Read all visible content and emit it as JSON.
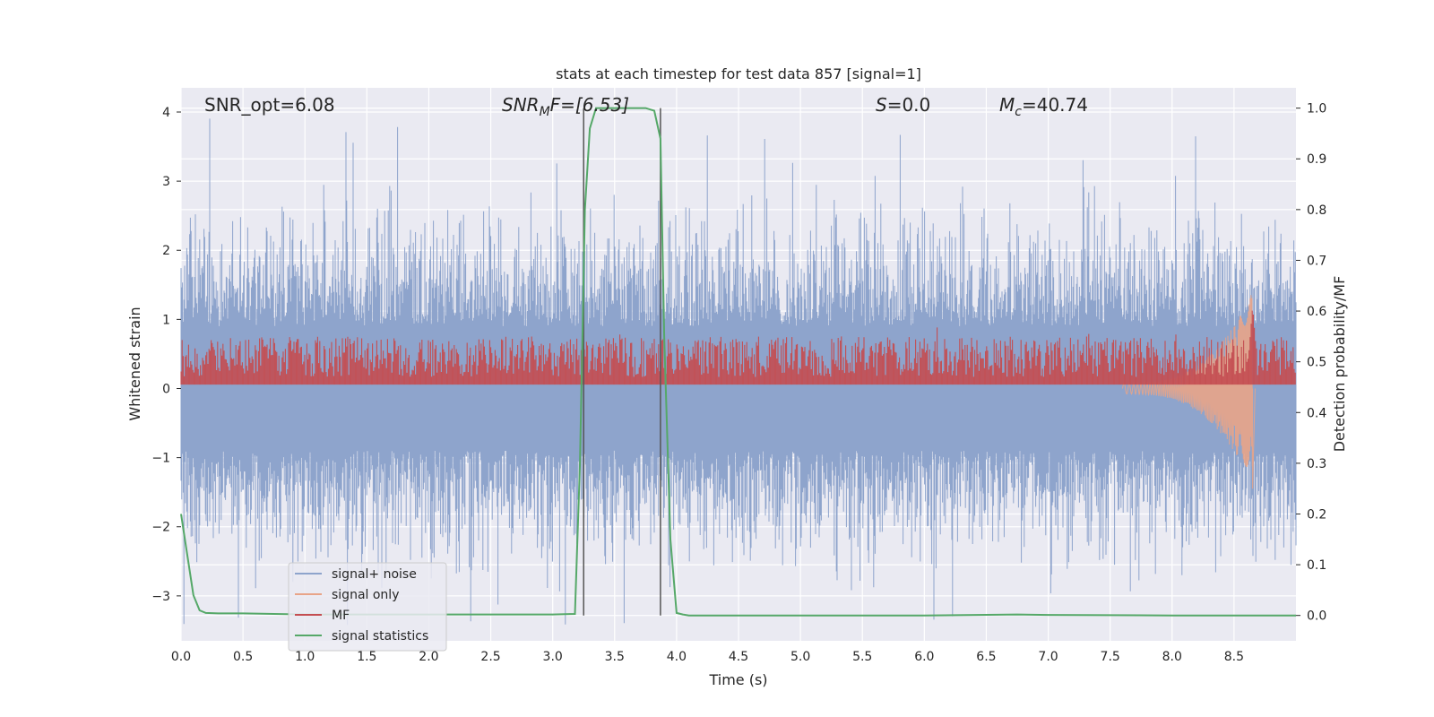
{
  "chart_data": {
    "type": "line",
    "title": "stats at each timestep for test data 857 [signal=1]",
    "xlabel": "Time (s)",
    "ylabel": "Whitened strain",
    "ylabel_right": "Detection probability/MF",
    "xlim": [
      0.0,
      9.0
    ],
    "ylim": [
      -3.65,
      4.35
    ],
    "ylim_right": [
      -0.05,
      1.04
    ],
    "x_ticks": [
      "0.0",
      "0.5",
      "1.0",
      "1.5",
      "2.0",
      "2.5",
      "3.0",
      "3.5",
      "4.0",
      "4.5",
      "5.0",
      "5.5",
      "6.0",
      "6.5",
      "7.0",
      "7.5",
      "8.0",
      "8.5"
    ],
    "y_ticks": [
      "−3",
      "−2",
      "−1",
      "0",
      "1",
      "2",
      "3",
      "4"
    ],
    "y_right_ticks": [
      "0.0",
      "0.1",
      "0.2",
      "0.3",
      "0.4",
      "0.5",
      "0.6",
      "0.7",
      "0.8",
      "0.9",
      "1.0"
    ],
    "grid": true,
    "legend_position": "lower-left",
    "annotations": {
      "snr_opt": "SNR_opt=6.08",
      "snr_mf_main": "SNR",
      "snr_mf_sub": "M",
      "snr_mf_rest": "F=[6.53]",
      "s_main": "S",
      "s_rest": "=0.0",
      "mc_main": "M",
      "mc_sub": "c",
      "mc_rest": "=40.74"
    },
    "vertical_lines_x": [
      3.25,
      3.87
    ],
    "series": [
      {
        "name": "signal+ noise",
        "color": "#8ea4cc",
        "description_axis": "left",
        "envelope": {
          "upper_typical": 1.9,
          "upper_peak": 4.0,
          "lower_typical": -1.9,
          "lower_peak": -3.6
        }
      },
      {
        "name": "signal only",
        "color": "#e8a488",
        "axis": "left",
        "chirp_end_x": 8.65,
        "chirp_peak": 1.4,
        "chirp_trough": -1.45
      },
      {
        "name": "MF",
        "color": "#c44e52",
        "axis": "right",
        "baseline": 0.5,
        "band": [
          0.47,
          0.55
        ],
        "peak_x": 8.65,
        "peak_value": 0.61
      },
      {
        "name": "signal statistics",
        "color": "#55a868",
        "axis": "right",
        "x": [
          0.0,
          0.05,
          0.1,
          0.15,
          0.2,
          0.3,
          0.5,
          1.0,
          2.0,
          3.0,
          3.18,
          3.22,
          3.26,
          3.3,
          3.35,
          3.5,
          3.75,
          3.82,
          3.87,
          3.9,
          3.95,
          4.0,
          4.05,
          4.1,
          5.0,
          6.0,
          6.75,
          7.0,
          8.0,
          9.0
        ],
        "values": [
          0.2,
          0.12,
          0.04,
          0.01,
          0.005,
          0.004,
          0.004,
          0.002,
          0.002,
          0.002,
          0.003,
          0.3,
          0.8,
          0.96,
          1.0,
          1.0,
          1.0,
          0.995,
          0.94,
          0.55,
          0.15,
          0.005,
          0.002,
          0.0,
          0.0,
          0.0,
          0.002,
          0.001,
          0.0,
          0.0
        ]
      }
    ]
  }
}
